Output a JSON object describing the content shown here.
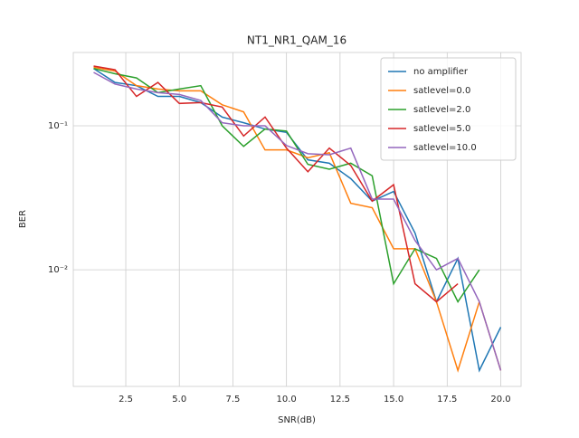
{
  "chart_data": {
    "type": "line",
    "title": "NT1_NR1_QAM_16",
    "x_label": "SNR(dB)",
    "y_label": "BER",
    "x": [
      1,
      2,
      3,
      4,
      5,
      6,
      7,
      8,
      9,
      10,
      11,
      12,
      13,
      14,
      15,
      16,
      17,
      18,
      19,
      20
    ],
    "series": [
      {
        "name": "no amplifier",
        "color": "#1f77b4",
        "values": [
          0.25,
          0.2,
          0.19,
          0.16,
          0.16,
          0.145,
          0.115,
          0.105,
          0.095,
          0.09,
          0.058,
          0.055,
          0.043,
          0.03,
          0.035,
          0.018,
          0.006,
          0.012,
          0.002,
          0.004
        ]
      },
      {
        "name": "satlevel=0.0",
        "color": "#ff7f0e",
        "values": [
          0.255,
          0.24,
          0.19,
          0.18,
          0.175,
          0.175,
          0.14,
          0.125,
          0.068,
          0.068,
          0.06,
          0.065,
          0.029,
          0.027,
          0.014,
          0.014,
          0.006,
          0.002,
          0.006,
          0.002
        ]
      },
      {
        "name": "satlevel=2.0",
        "color": "#2ca02c",
        "values": [
          0.25,
          0.23,
          0.215,
          0.17,
          0.18,
          0.19,
          0.1,
          0.072,
          0.095,
          0.092,
          0.054,
          0.05,
          0.055,
          0.045,
          0.008,
          0.014,
          0.012,
          0.006,
          0.01,
          null
        ]
      },
      {
        "name": "satlevel=5.0",
        "color": "#d62728",
        "values": [
          0.26,
          0.245,
          0.16,
          0.2,
          0.143,
          0.145,
          0.135,
          0.085,
          0.115,
          0.07,
          0.048,
          0.07,
          0.053,
          0.03,
          0.039,
          0.008,
          0.006,
          0.008,
          null,
          null
        ]
      },
      {
        "name": "satlevel=10.0",
        "color": "#9467bd",
        "values": [
          0.235,
          0.195,
          0.18,
          0.17,
          0.165,
          0.15,
          0.105,
          0.1,
          0.1,
          0.073,
          0.064,
          0.063,
          0.07,
          0.031,
          0.031,
          0.016,
          0.01,
          0.012,
          0.006,
          0.002
        ]
      }
    ],
    "xlim": [
      0.05,
      20.95
    ],
    "xticks": [
      {
        "value": 2.5,
        "label": "2.5"
      },
      {
        "value": 5,
        "label": "5.0"
      },
      {
        "value": 7.5,
        "label": "7.5"
      },
      {
        "value": 10,
        "label": "10.0"
      },
      {
        "value": 12.5,
        "label": "12.5"
      },
      {
        "value": 15,
        "label": "15.0"
      },
      {
        "value": 17.5,
        "label": "17.5"
      },
      {
        "value": 20,
        "label": "20.0"
      }
    ],
    "ylim": [
      0.00155,
      0.323
    ],
    "y_scale": "log",
    "yticks": [
      {
        "value": 0.01,
        "label": "10⁻²"
      },
      {
        "value": 0.1,
        "label": "10⁻¹"
      }
    ],
    "grid": true,
    "legend_position": "upper right"
  }
}
